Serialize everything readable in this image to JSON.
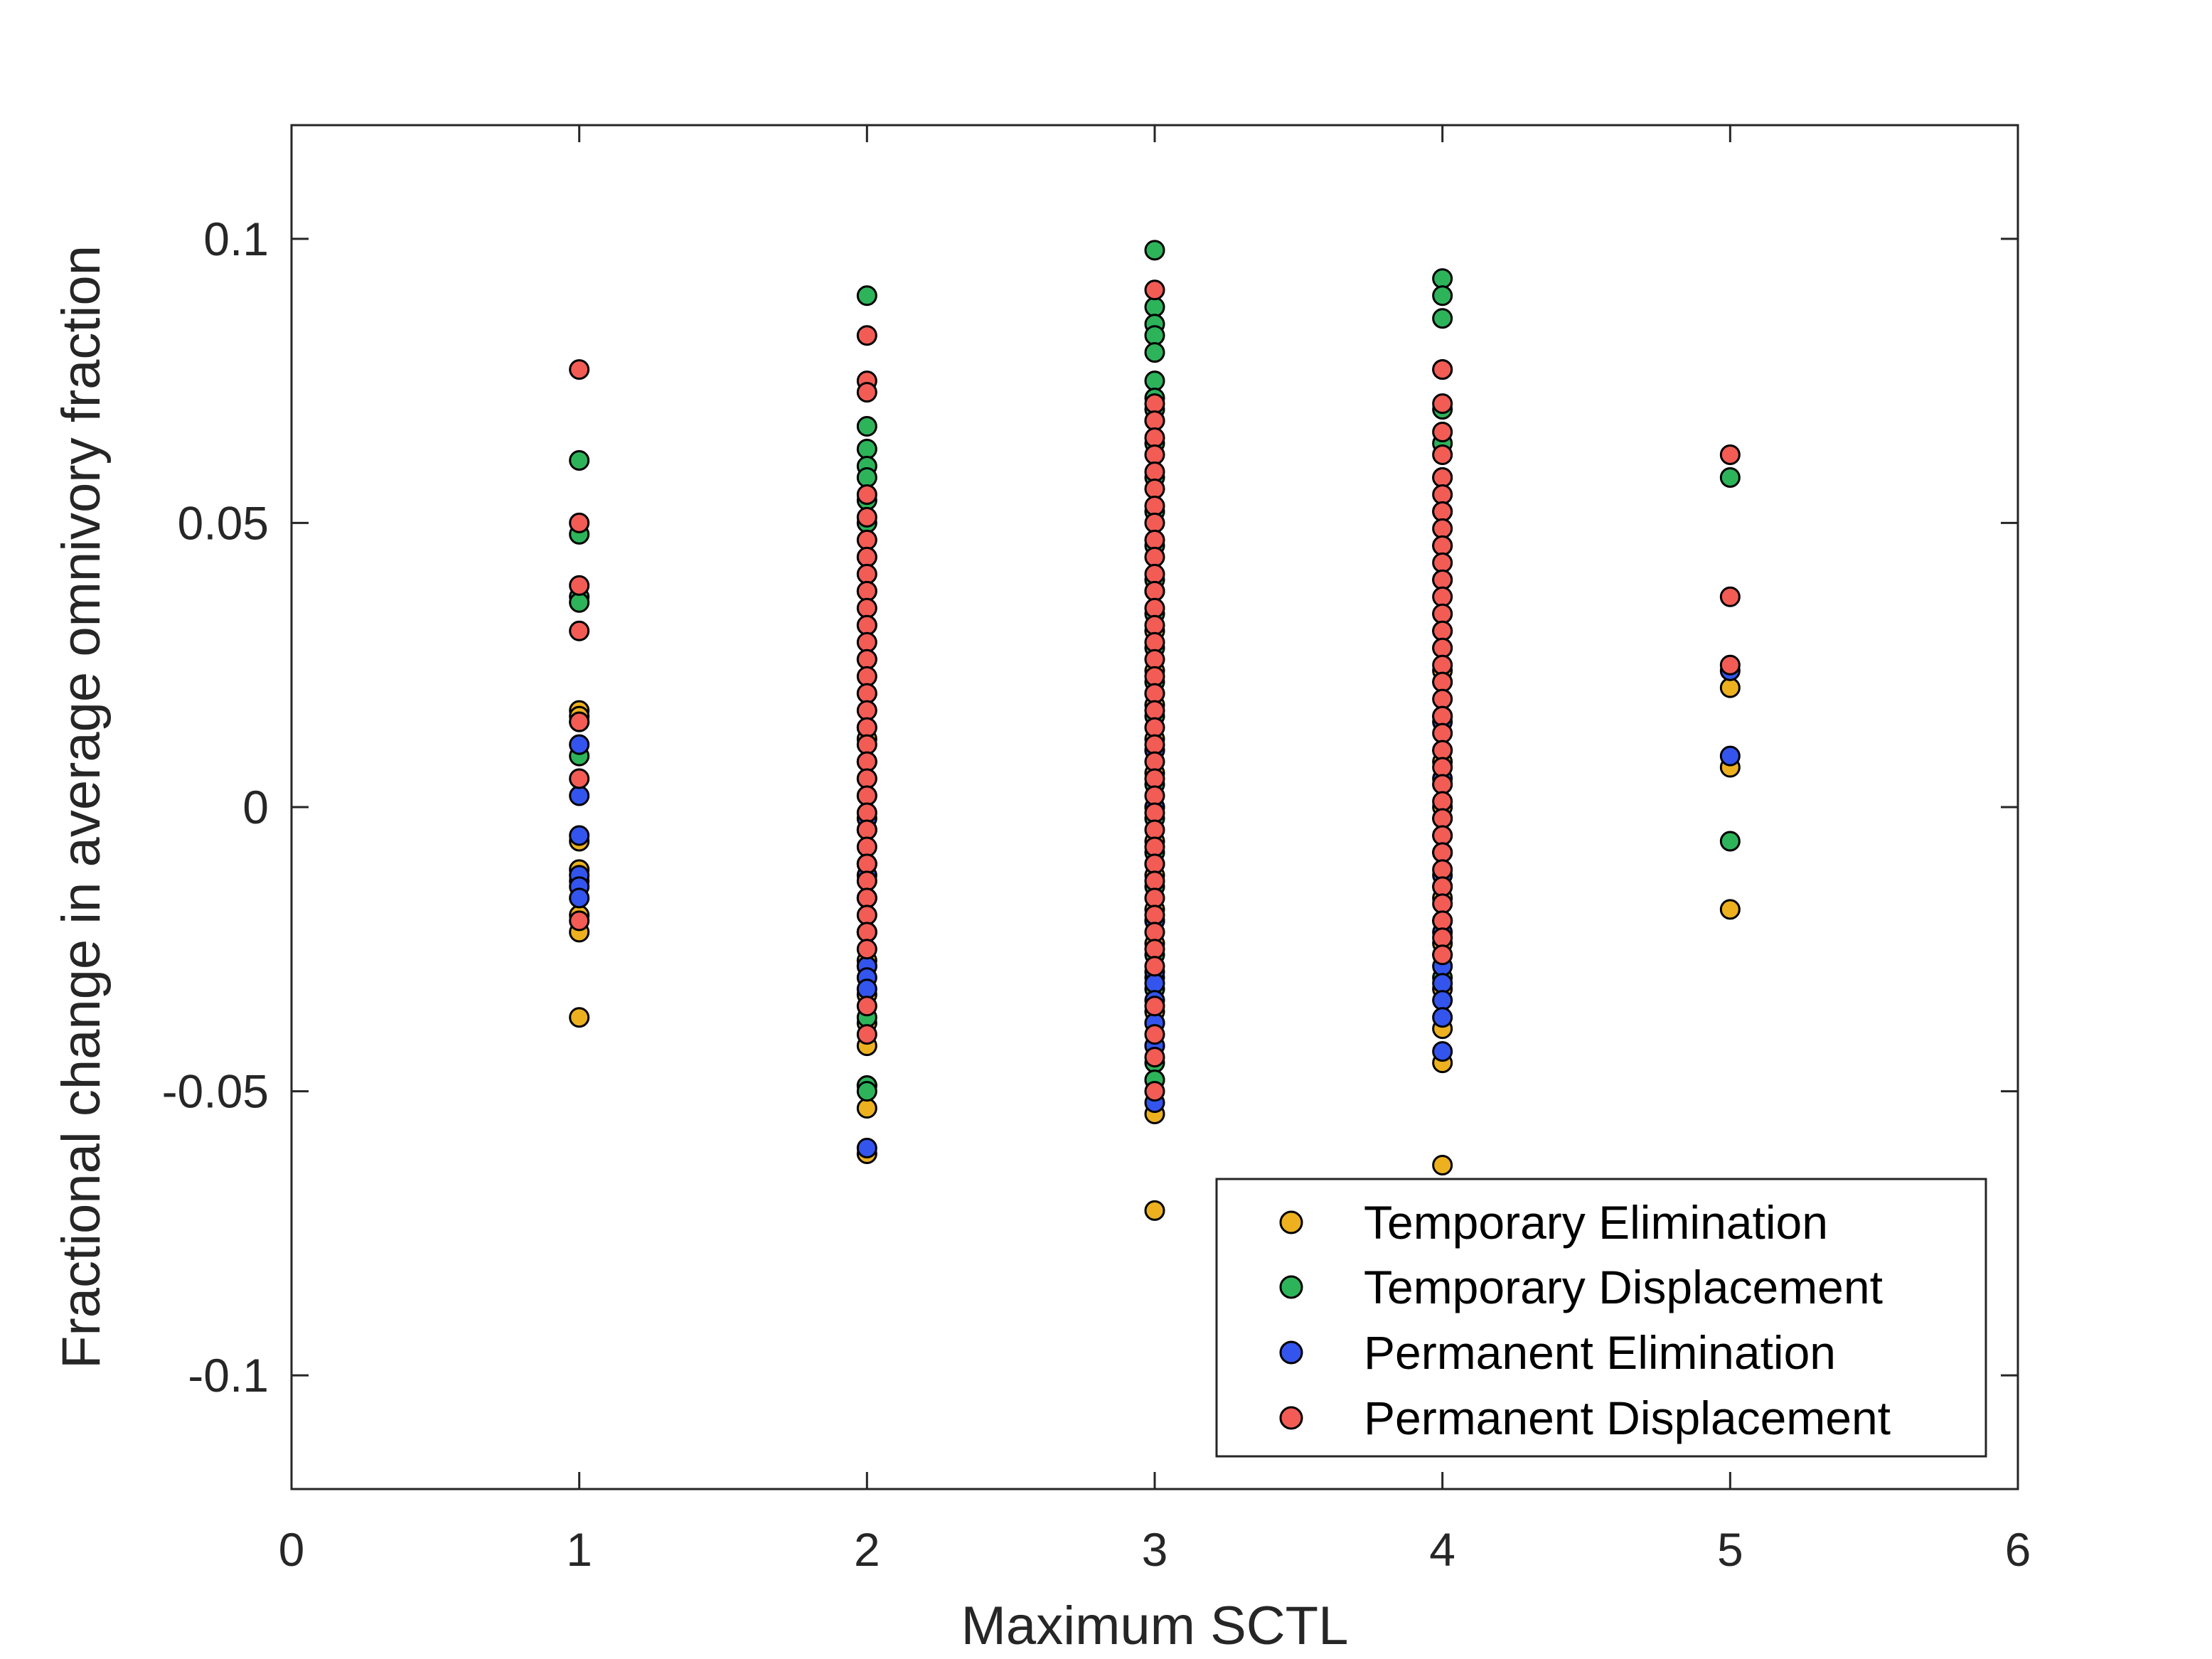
{
  "chart_data": {
    "type": "scatter",
    "title": "",
    "xlabel": "Maximum SCTL",
    "ylabel": "Fractional change in average omnivory fraction",
    "xlim": [
      0,
      6
    ],
    "ylim": [
      -0.12,
      0.12
    ],
    "xticks": [
      0,
      1,
      2,
      3,
      4,
      5,
      6
    ],
    "yticks": [
      -0.1,
      -0.05,
      0,
      0.05,
      0.1
    ],
    "xtick_labels": [
      "0",
      "1",
      "2",
      "3",
      "4",
      "5",
      "6"
    ],
    "ytick_labels": [
      "-0.1",
      "-0.05",
      "0",
      "0.05",
      "0.1"
    ],
    "grid": false,
    "legend": {
      "placement": "bottom-right"
    },
    "series": [
      {
        "name": "Temporary Elimination",
        "color": "#EDB120",
        "points": [
          [
            1,
            0.017
          ],
          [
            1,
            0.016
          ],
          [
            1,
            0.015
          ],
          [
            1,
            -0.006
          ],
          [
            1,
            -0.011
          ],
          [
            1,
            -0.013
          ],
          [
            1,
            -0.019
          ],
          [
            1,
            -0.022
          ],
          [
            1,
            -0.037
          ],
          [
            2,
            0.012
          ],
          [
            2,
            0.005
          ],
          [
            2,
            -0.004
          ],
          [
            2,
            -0.01
          ],
          [
            2,
            -0.016
          ],
          [
            2,
            -0.022
          ],
          [
            2,
            -0.027
          ],
          [
            2,
            -0.033
          ],
          [
            2,
            -0.038
          ],
          [
            2,
            -0.042
          ],
          [
            2,
            -0.049
          ],
          [
            2,
            -0.053
          ],
          [
            2,
            -0.061
          ],
          [
            3,
            0.038
          ],
          [
            3,
            0.031
          ],
          [
            3,
            0.024
          ],
          [
            3,
            0.018
          ],
          [
            3,
            0.012
          ],
          [
            3,
            0.006
          ],
          [
            3,
            0.0
          ],
          [
            3,
            -0.006
          ],
          [
            3,
            -0.012
          ],
          [
            3,
            -0.018
          ],
          [
            3,
            -0.024
          ],
          [
            3,
            -0.03
          ],
          [
            3,
            -0.036
          ],
          [
            3,
            -0.042
          ],
          [
            3,
            -0.048
          ],
          [
            3,
            -0.054
          ],
          [
            3,
            -0.071
          ],
          [
            4,
            0.031
          ],
          [
            4,
            0.024
          ],
          [
            4,
            0.016
          ],
          [
            4,
            0.008
          ],
          [
            4,
            0.0
          ],
          [
            4,
            -0.008
          ],
          [
            4,
            -0.016
          ],
          [
            4,
            -0.024
          ],
          [
            4,
            -0.032
          ],
          [
            4,
            -0.039
          ],
          [
            4,
            -0.045
          ],
          [
            4,
            -0.063
          ],
          [
            5,
            0.021
          ],
          [
            5,
            0.007
          ],
          [
            5,
            -0.018
          ]
        ]
      },
      {
        "name": "Temporary Displacement",
        "color": "#2DB45A",
        "points": [
          [
            1,
            0.061
          ],
          [
            1,
            0.048
          ],
          [
            1,
            0.037
          ],
          [
            1,
            0.036
          ],
          [
            1,
            0.009
          ],
          [
            2,
            0.09
          ],
          [
            2,
            0.067
          ],
          [
            2,
            0.063
          ],
          [
            2,
            0.06
          ],
          [
            2,
            0.058
          ],
          [
            2,
            0.054
          ],
          [
            2,
            0.05
          ],
          [
            2,
            0.044
          ],
          [
            2,
            0.038
          ],
          [
            2,
            0.032
          ],
          [
            2,
            0.026
          ],
          [
            2,
            0.02
          ],
          [
            2,
            0.014
          ],
          [
            2,
            0.008
          ],
          [
            2,
            0.002
          ],
          [
            2,
            -0.004
          ],
          [
            2,
            -0.01
          ],
          [
            2,
            -0.016
          ],
          [
            2,
            -0.022
          ],
          [
            2,
            -0.028
          ],
          [
            2,
            -0.037
          ],
          [
            2,
            -0.049
          ],
          [
            2,
            -0.05
          ],
          [
            3,
            0.098
          ],
          [
            3,
            0.088
          ],
          [
            3,
            0.085
          ],
          [
            3,
            0.083
          ],
          [
            3,
            0.08
          ],
          [
            3,
            0.075
          ],
          [
            3,
            0.072
          ],
          [
            3,
            0.07
          ],
          [
            3,
            0.068
          ],
          [
            3,
            0.064
          ],
          [
            3,
            0.058
          ],
          [
            3,
            0.052
          ],
          [
            3,
            0.046
          ],
          [
            3,
            0.04
          ],
          [
            3,
            0.034
          ],
          [
            3,
            0.028
          ],
          [
            3,
            0.022
          ],
          [
            3,
            0.016
          ],
          [
            3,
            0.01
          ],
          [
            3,
            0.004
          ],
          [
            3,
            -0.002
          ],
          [
            3,
            -0.008
          ],
          [
            3,
            -0.014
          ],
          [
            3,
            -0.02
          ],
          [
            3,
            -0.026
          ],
          [
            3,
            -0.032
          ],
          [
            3,
            -0.038
          ],
          [
            3,
            -0.045
          ],
          [
            3,
            -0.048
          ],
          [
            4,
            0.093
          ],
          [
            4,
            0.09
          ],
          [
            4,
            0.086
          ],
          [
            4,
            0.077
          ],
          [
            4,
            0.07
          ],
          [
            4,
            0.064
          ],
          [
            4,
            0.058
          ],
          [
            4,
            0.052
          ],
          [
            4,
            0.046
          ],
          [
            4,
            0.04
          ],
          [
            4,
            0.034
          ],
          [
            4,
            0.028
          ],
          [
            4,
            0.022
          ],
          [
            4,
            0.016
          ],
          [
            4,
            0.01
          ],
          [
            4,
            0.004
          ],
          [
            4,
            -0.002
          ],
          [
            4,
            -0.008
          ],
          [
            4,
            -0.014
          ],
          [
            4,
            -0.02
          ],
          [
            4,
            -0.026
          ],
          [
            4,
            -0.03
          ],
          [
            5,
            0.058
          ],
          [
            5,
            -0.006
          ]
        ]
      },
      {
        "name": "Permanent Elimination",
        "color": "#3355EE",
        "points": [
          [
            1,
            0.011
          ],
          [
            1,
            0.002
          ],
          [
            1,
            -0.005
          ],
          [
            1,
            -0.012
          ],
          [
            1,
            -0.014
          ],
          [
            1,
            -0.016
          ],
          [
            2,
            0.008
          ],
          [
            2,
            -0.002
          ],
          [
            2,
            -0.012
          ],
          [
            2,
            -0.022
          ],
          [
            2,
            -0.028
          ],
          [
            2,
            -0.03
          ],
          [
            2,
            -0.032
          ],
          [
            2,
            -0.06
          ],
          [
            3,
            0.02
          ],
          [
            3,
            0.01
          ],
          [
            3,
            0.0
          ],
          [
            3,
            -0.01
          ],
          [
            3,
            -0.02
          ],
          [
            3,
            -0.029
          ],
          [
            3,
            -0.031
          ],
          [
            3,
            -0.034
          ],
          [
            3,
            -0.038
          ],
          [
            3,
            -0.042
          ],
          [
            3,
            -0.052
          ],
          [
            4,
            0.015
          ],
          [
            4,
            0.005
          ],
          [
            4,
            -0.005
          ],
          [
            4,
            -0.012
          ],
          [
            4,
            -0.02
          ],
          [
            4,
            -0.022
          ],
          [
            4,
            -0.028
          ],
          [
            4,
            -0.031
          ],
          [
            4,
            -0.034
          ],
          [
            4,
            -0.037
          ],
          [
            4,
            -0.043
          ],
          [
            5,
            0.024
          ],
          [
            5,
            0.009
          ]
        ]
      },
      {
        "name": "Permanent Displacement",
        "color": "#F25C54",
        "points": [
          [
            1,
            0.077
          ],
          [
            1,
            0.05
          ],
          [
            1,
            0.039
          ],
          [
            1,
            0.031
          ],
          [
            1,
            0.015
          ],
          [
            1,
            0.005
          ],
          [
            1,
            -0.02
          ],
          [
            2,
            0.083
          ],
          [
            2,
            0.075
          ],
          [
            2,
            0.073
          ],
          [
            2,
            0.055
          ],
          [
            2,
            0.051
          ],
          [
            2,
            0.047
          ],
          [
            2,
            0.044
          ],
          [
            2,
            0.041
          ],
          [
            2,
            0.038
          ],
          [
            2,
            0.035
          ],
          [
            2,
            0.032
          ],
          [
            2,
            0.029
          ],
          [
            2,
            0.026
          ],
          [
            2,
            0.023
          ],
          [
            2,
            0.02
          ],
          [
            2,
            0.017
          ],
          [
            2,
            0.014
          ],
          [
            2,
            0.011
          ],
          [
            2,
            0.008
          ],
          [
            2,
            0.005
          ],
          [
            2,
            0.002
          ],
          [
            2,
            -0.001
          ],
          [
            2,
            -0.004
          ],
          [
            2,
            -0.007
          ],
          [
            2,
            -0.01
          ],
          [
            2,
            -0.013
          ],
          [
            2,
            -0.016
          ],
          [
            2,
            -0.019
          ],
          [
            2,
            -0.022
          ],
          [
            2,
            -0.025
          ],
          [
            2,
            -0.035
          ],
          [
            2,
            -0.04
          ],
          [
            3,
            0.091
          ],
          [
            3,
            0.071
          ],
          [
            3,
            0.068
          ],
          [
            3,
            0.065
          ],
          [
            3,
            0.062
          ],
          [
            3,
            0.059
          ],
          [
            3,
            0.056
          ],
          [
            3,
            0.053
          ],
          [
            3,
            0.05
          ],
          [
            3,
            0.047
          ],
          [
            3,
            0.044
          ],
          [
            3,
            0.041
          ],
          [
            3,
            0.038
          ],
          [
            3,
            0.035
          ],
          [
            3,
            0.032
          ],
          [
            3,
            0.029
          ],
          [
            3,
            0.026
          ],
          [
            3,
            0.023
          ],
          [
            3,
            0.02
          ],
          [
            3,
            0.017
          ],
          [
            3,
            0.014
          ],
          [
            3,
            0.011
          ],
          [
            3,
            0.008
          ],
          [
            3,
            0.005
          ],
          [
            3,
            0.002
          ],
          [
            3,
            -0.001
          ],
          [
            3,
            -0.004
          ],
          [
            3,
            -0.007
          ],
          [
            3,
            -0.01
          ],
          [
            3,
            -0.013
          ],
          [
            3,
            -0.016
          ],
          [
            3,
            -0.019
          ],
          [
            3,
            -0.022
          ],
          [
            3,
            -0.025
          ],
          [
            3,
            -0.028
          ],
          [
            3,
            -0.035
          ],
          [
            3,
            -0.04
          ],
          [
            3,
            -0.044
          ],
          [
            3,
            -0.05
          ],
          [
            4,
            0.077
          ],
          [
            4,
            0.071
          ],
          [
            4,
            0.066
          ],
          [
            4,
            0.062
          ],
          [
            4,
            0.058
          ],
          [
            4,
            0.055
          ],
          [
            4,
            0.052
          ],
          [
            4,
            0.049
          ],
          [
            4,
            0.046
          ],
          [
            4,
            0.043
          ],
          [
            4,
            0.04
          ],
          [
            4,
            0.037
          ],
          [
            4,
            0.034
          ],
          [
            4,
            0.031
          ],
          [
            4,
            0.028
          ],
          [
            4,
            0.025
          ],
          [
            4,
            0.022
          ],
          [
            4,
            0.019
          ],
          [
            4,
            0.016
          ],
          [
            4,
            0.013
          ],
          [
            4,
            0.01
          ],
          [
            4,
            0.007
          ],
          [
            4,
            0.004
          ],
          [
            4,
            0.001
          ],
          [
            4,
            -0.002
          ],
          [
            4,
            -0.005
          ],
          [
            4,
            -0.008
          ],
          [
            4,
            -0.011
          ],
          [
            4,
            -0.014
          ],
          [
            4,
            -0.017
          ],
          [
            4,
            -0.02
          ],
          [
            4,
            -0.023
          ],
          [
            4,
            -0.026
          ],
          [
            5,
            0.062
          ],
          [
            5,
            0.037
          ],
          [
            5,
            0.025
          ]
        ]
      }
    ]
  }
}
